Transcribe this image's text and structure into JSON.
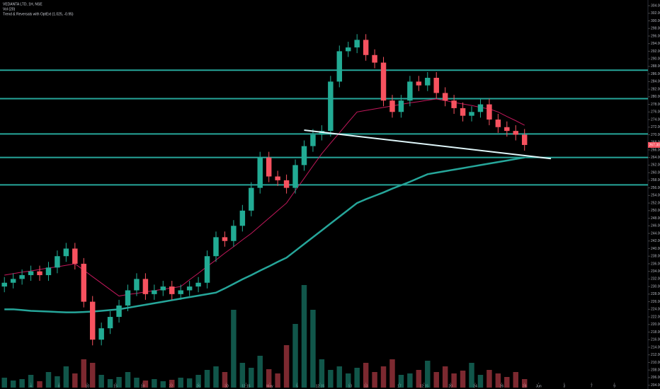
{
  "chart_data": {
    "type": "candlestick",
    "title": "VEDANTA LTD, 1H, NSE",
    "subtitle": "Vol (20)",
    "annotation": "Trend & Reversals with OptExt (1.025, -0.95)",
    "x": [
      0,
      1,
      2,
      3,
      4,
      5,
      6,
      7,
      8,
      9,
      10,
      11,
      12,
      13,
      14,
      15,
      16,
      17,
      18,
      19,
      20,
      21,
      22,
      23,
      24,
      25,
      26,
      27,
      28,
      29,
      30,
      31,
      32,
      33,
      34,
      35,
      36,
      37,
      38,
      39,
      40,
      41,
      42,
      43,
      44,
      45,
      46,
      47,
      48,
      49,
      50,
      51,
      52,
      53,
      54,
      55,
      56,
      57,
      58,
      59
    ],
    "open": [
      230,
      231,
      232,
      233,
      234,
      233,
      235,
      238,
      240,
      236,
      226,
      216,
      219,
      222,
      225,
      229,
      232,
      228,
      229,
      230,
      228,
      229,
      230,
      231,
      238,
      243,
      242,
      246,
      250,
      256,
      264,
      259,
      258,
      256,
      262,
      267,
      270,
      271,
      284,
      292,
      293,
      295,
      291,
      289,
      279,
      276,
      279,
      284,
      283,
      285,
      281,
      279,
      277,
      275,
      276,
      278,
      274,
      272,
      271,
      270
    ],
    "high": [
      232.5,
      233.5,
      234.5,
      235.5,
      235.5,
      236.5,
      239.5,
      241.5,
      241.5,
      237.5,
      227.5,
      220.5,
      223.5,
      226.5,
      230.5,
      233.5,
      233.5,
      230.5,
      231.5,
      231.5,
      230.5,
      231.5,
      232.5,
      239.5,
      244.5,
      244.5,
      247.5,
      251.5,
      257.5,
      265.5,
      265.5,
      260.5,
      259.5,
      263.5,
      268.5,
      271.5,
      272.5,
      285.5,
      293.5,
      294.5,
      296.5,
      296.5,
      292.5,
      290.5,
      280.5,
      280.5,
      285.5,
      285.5,
      286.5,
      286.5,
      282.5,
      280.5,
      278.5,
      277.5,
      279.5,
      279.5,
      275.5,
      273.5,
      272.5,
      271.5
    ],
    "low": [
      228.5,
      229.5,
      230.5,
      231.5,
      231.5,
      231.5,
      233.5,
      236.5,
      234.5,
      224.5,
      214.5,
      214.5,
      217.5,
      220.5,
      223.5,
      227.5,
      226.5,
      226.5,
      227.5,
      226.5,
      226.5,
      227.5,
      228.5,
      229.5,
      236.5,
      240.5,
      240.5,
      244.5,
      248.5,
      254.5,
      257.5,
      256.5,
      254.5,
      254.5,
      260.5,
      265.5,
      268.5,
      269.5,
      282.5,
      290.5,
      291.5,
      289.5,
      287.5,
      277.5,
      274.5,
      274.5,
      277.5,
      281.5,
      281.5,
      279.5,
      277.5,
      275.5,
      273.5,
      273.5,
      274.5,
      272.5,
      270.5,
      269.5,
      268.5,
      265.8
    ],
    "close": [
      231,
      232,
      233,
      234,
      233,
      235,
      238,
      240,
      236,
      226,
      216,
      219,
      222,
      225,
      229,
      232,
      228,
      229,
      230,
      228,
      229,
      230,
      231,
      238,
      243,
      242,
      246,
      250,
      256,
      264,
      259,
      258,
      256,
      262,
      267,
      270,
      271,
      284,
      292,
      293,
      295,
      291,
      289,
      279,
      276,
      279,
      284,
      283,
      285,
      281,
      279,
      277,
      275,
      276,
      278,
      274,
      272,
      271,
      270,
      267.3
    ],
    "volume": [
      14,
      10,
      12,
      18,
      9,
      22,
      16,
      30,
      20,
      40,
      35,
      18,
      12,
      15,
      22,
      14,
      10,
      12,
      9,
      11,
      14,
      13,
      18,
      25,
      30,
      22,
      110,
      35,
      28,
      45,
      26,
      20,
      60,
      90,
      145,
      110,
      40,
      25,
      30,
      20,
      28,
      35,
      22,
      30,
      40,
      18,
      20,
      25,
      38,
      22,
      30,
      20,
      24,
      35,
      18,
      25,
      20,
      15,
      22,
      12
    ],
    "up_color": "#22ab94",
    "down_color": "#f7525f",
    "series": [
      {
        "color": "#26a69a",
        "values": [
          224,
          224,
          223.8,
          223.6,
          223.5,
          223.4,
          223.3,
          223.2,
          223.2,
          223.3,
          223.4,
          223.6,
          223.8,
          224,
          224.4,
          224.8,
          225.2,
          225.6,
          226,
          226.4,
          226.8,
          227.2,
          227.6,
          228,
          228.4,
          229.5,
          230.7,
          231.9,
          233,
          234.2,
          235.3,
          236.5,
          237.6,
          239.4,
          241.2,
          243,
          244.8,
          246.6,
          248.4,
          250.2,
          252,
          253,
          253.9,
          254.8,
          255.8,
          256.7,
          257.6,
          258.6,
          259.6,
          260,
          260.4,
          260.8,
          261.2,
          261.6,
          262,
          262.4,
          262.8,
          263.2,
          263.6,
          264
        ]
      },
      {
        "color": "#c2185b",
        "values": [
          233,
          233.4,
          233.8,
          234.1,
          234.5,
          234.9,
          235.2,
          235.6,
          236,
          234.3,
          232.6,
          230.9,
          229.2,
          227.5,
          227.9,
          228.2,
          228.6,
          228.9,
          229.3,
          229.6,
          230,
          231.8,
          233.5,
          235.3,
          237,
          238.8,
          240.5,
          242.3,
          244,
          246,
          248,
          250,
          252,
          255.3,
          258.5,
          261.8,
          265,
          267.8,
          270.5,
          273.3,
          276,
          276.4,
          276.8,
          277.2,
          277.6,
          278,
          278.4,
          278.7,
          279.1,
          279.4,
          279,
          278.5,
          278.1,
          277.7,
          277.2,
          276.8,
          276,
          274.8,
          273.7,
          272.5
        ]
      }
    ],
    "levels": [
      287,
      279.5,
      270.2,
      264,
      256.8
    ],
    "level_color": "#26a69a",
    "trendline": {
      "x": [
        34,
        62
      ],
      "y": [
        271.2,
        263.7
      ],
      "color": "#e0f7fa"
    },
    "price_label": {
      "value": 267.3,
      "label": "267.30"
    },
    "xlim": [
      -0.5,
      73
    ],
    "ylim": [
      203,
      305.5
    ],
    "xticks": [
      {
        "value": 3,
        "label": "4"
      },
      {
        "value": 6.2,
        "label": "8"
      },
      {
        "value": 9.4,
        "label": "10"
      },
      {
        "value": 12.6,
        "label": "15"
      },
      {
        "value": 15.7,
        "label": "19"
      },
      {
        "value": 18.9,
        "label": "22"
      },
      {
        "value": 22,
        "label": "26"
      },
      {
        "value": 25.2,
        "label": "30"
      },
      {
        "value": 27.4,
        "label": "12:15"
      },
      {
        "value": 30.1,
        "label": "May"
      },
      {
        "value": 33.2,
        "label": "5"
      },
      {
        "value": 35.8,
        "label": "12:15"
      },
      {
        "value": 39.2,
        "label": "10"
      },
      {
        "value": 41,
        "label": "13"
      },
      {
        "value": 44.8,
        "label": "17"
      },
      {
        "value": 47.6,
        "label": "12:15"
      },
      {
        "value": 50.6,
        "label": "20"
      },
      {
        "value": 53.4,
        "label": "24"
      },
      {
        "value": 56.4,
        "label": "26"
      },
      {
        "value": 59,
        "label": "28"
      },
      {
        "value": 60.6,
        "label": "Jun"
      },
      {
        "value": 63.5,
        "label": "3"
      },
      {
        "value": 66.6,
        "label": "7"
      },
      {
        "value": 69.2,
        "label": "9"
      }
    ],
    "yticks": [
      {
        "value": 204,
        "label": "204.00"
      },
      {
        "value": 206,
        "label": "206.00"
      },
      {
        "value": 208,
        "label": "208.00"
      },
      {
        "value": 210,
        "label": "210.00"
      },
      {
        "value": 212,
        "label": "212.00"
      },
      {
        "value": 214,
        "label": "214.00"
      },
      {
        "value": 216,
        "label": "216.00"
      },
      {
        "value": 218,
        "label": "218.00"
      },
      {
        "value": 220,
        "label": "220.00"
      },
      {
        "value": 222,
        "label": "222.00"
      },
      {
        "value": 224,
        "label": "224.00"
      },
      {
        "value": 226,
        "label": "226.00"
      },
      {
        "value": 228,
        "label": "228.00"
      },
      {
        "value": 230,
        "label": "230.00"
      },
      {
        "value": 232,
        "label": "232.00"
      },
      {
        "value": 234,
        "label": "234.00"
      },
      {
        "value": 236,
        "label": "236.00"
      },
      {
        "value": 238,
        "label": "238.00"
      },
      {
        "value": 240,
        "label": "240.00"
      },
      {
        "value": 242,
        "label": "242.00"
      },
      {
        "value": 244,
        "label": "244.00"
      },
      {
        "value": 246,
        "label": "246.00"
      },
      {
        "value": 248,
        "label": "248.00"
      },
      {
        "value": 250,
        "label": "250.00"
      },
      {
        "value": 252,
        "label": "252.00"
      },
      {
        "value": 254,
        "label": "254.00"
      },
      {
        "value": 256,
        "label": "256.00"
      },
      {
        "value": 258,
        "label": "258.00"
      },
      {
        "value": 260,
        "label": "260.00"
      },
      {
        "value": 262,
        "label": "262.00"
      },
      {
        "value": 264,
        "label": "264.00"
      },
      {
        "value": 266,
        "label": "266.00"
      },
      {
        "value": 268,
        "label": "268.00"
      },
      {
        "value": 270,
        "label": "270.00"
      },
      {
        "value": 272,
        "label": "272.00"
      },
      {
        "value": 274,
        "label": "274.00"
      },
      {
        "value": 276,
        "label": "276.00"
      },
      {
        "value": 278,
        "label": "278.00"
      },
      {
        "value": 280,
        "label": "280.00"
      },
      {
        "value": 282,
        "label": "282.00"
      },
      {
        "value": 284,
        "label": "284.00"
      },
      {
        "value": 286,
        "label": "286.00"
      },
      {
        "value": 288,
        "label": "288.00"
      },
      {
        "value": 290,
        "label": "290.00"
      },
      {
        "value": 292,
        "label": "292.00"
      },
      {
        "value": 294,
        "label": "294.00"
      },
      {
        "value": 296,
        "label": "296.00"
      },
      {
        "value": 298,
        "label": "298.00"
      },
      {
        "value": 300,
        "label": "300.00"
      },
      {
        "value": 302,
        "label": "302.00"
      },
      {
        "value": 304,
        "label": "304.00"
      }
    ],
    "grid": false
  }
}
